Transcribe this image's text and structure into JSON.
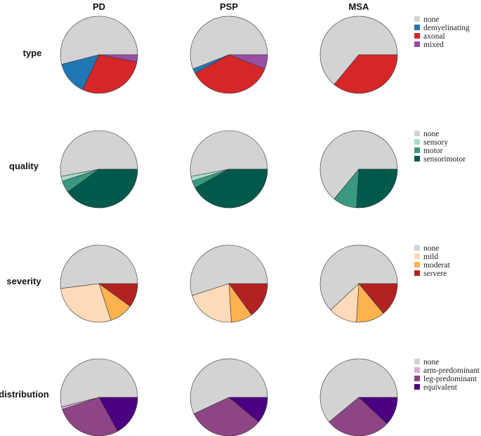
{
  "chart_data": {
    "type": "pie",
    "columns": [
      "PD",
      "PSP",
      "MSA"
    ],
    "rows": [
      {
        "title": "type",
        "legend": [
          {
            "label": "none",
            "color": "#d3d3d3"
          },
          {
            "label": "demyelinating",
            "color": "#1f78b4"
          },
          {
            "label": "axonal",
            "color": "#d62728"
          },
          {
            "label": "mixed",
            "color": "#984ea3"
          }
        ],
        "values": {
          "PD": [
            0.54,
            0.14,
            0.29,
            0.03
          ],
          "PSP": [
            0.56,
            0.02,
            0.36,
            0.06
          ],
          "MSA": [
            0.64,
            0.0,
            0.36,
            0.0
          ]
        }
      },
      {
        "title": "quality",
        "legend": [
          {
            "label": "none",
            "color": "#d3d3d3"
          },
          {
            "label": "sensory",
            "color": "#a8dcc9"
          },
          {
            "label": "motor",
            "color": "#3a9880"
          },
          {
            "label": "sensorimotor",
            "color": "#005a4b"
          }
        ],
        "values": {
          "PD": [
            0.53,
            0.02,
            0.05,
            0.4
          ],
          "PSP": [
            0.53,
            0.02,
            0.03,
            0.42
          ],
          "MSA": [
            0.64,
            0.0,
            0.1,
            0.26
          ]
        }
      },
      {
        "title": "severity",
        "legend": [
          {
            "label": "none",
            "color": "#d3d3d3"
          },
          {
            "label": "mild",
            "color": "#fddbb8"
          },
          {
            "label": "moderat",
            "color": "#fdb14f"
          },
          {
            "label": "servere",
            "color": "#b22222"
          }
        ],
        "values": {
          "PD": [
            0.52,
            0.28,
            0.1,
            0.1
          ],
          "PSP": [
            0.55,
            0.21,
            0.09,
            0.15
          ],
          "MSA": [
            0.62,
            0.12,
            0.12,
            0.14
          ]
        }
      },
      {
        "title": "distribution",
        "legend": [
          {
            "label": "none",
            "color": "#d3d3d3"
          },
          {
            "label": "arm-predominant",
            "color": "#d8b0d8"
          },
          {
            "label": "leg-predominant",
            "color": "#8e4585"
          },
          {
            "label": "equivalent",
            "color": "#4b0082"
          }
        ],
        "values": {
          "PD": [
            0.54,
            0.01,
            0.28,
            0.17
          ],
          "PSP": [
            0.57,
            0.0,
            0.32,
            0.11
          ],
          "MSA": [
            0.61,
            0.0,
            0.27,
            0.12
          ]
        }
      }
    ]
  }
}
